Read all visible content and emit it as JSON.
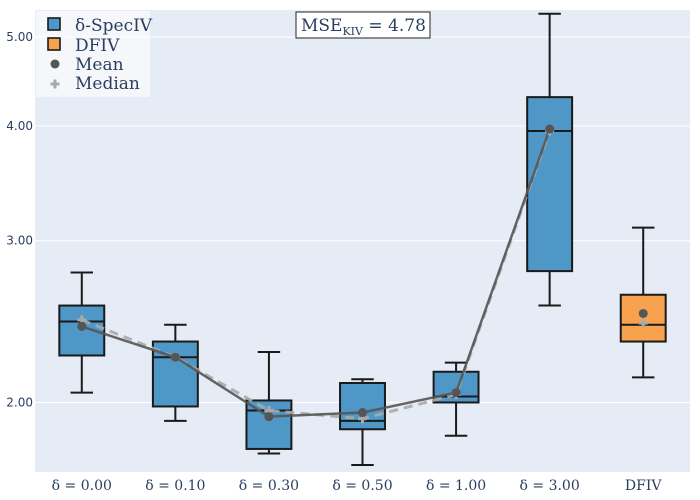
{
  "chart_data": {
    "type": "box",
    "y_scale": "log",
    "ylim": [
      1.68,
      5.35
    ],
    "y_ticks": [
      2.0,
      3.0,
      4.0,
      5.0
    ],
    "y_tick_labels": [
      "2.00",
      "3.00",
      "4.00",
      "5.00"
    ],
    "categories": [
      "δ = 0.00",
      "δ = 0.10",
      "δ = 0.30",
      "δ = 0.50",
      "δ = 1.00",
      "δ = 3.00",
      "DFIV"
    ],
    "series": [
      {
        "name": "δ-SpecIV",
        "color": "#4f97c7",
        "boxes": [
          {
            "category": "δ = 0.00",
            "min": 2.05,
            "q1": 2.25,
            "median": 2.45,
            "q3": 2.55,
            "max": 2.77,
            "mean": 2.42,
            "median_marker": 2.46
          },
          {
            "category": "δ = 0.10",
            "min": 1.91,
            "q1": 1.98,
            "median": 2.24,
            "q3": 2.33,
            "max": 2.43,
            "mean": 2.24,
            "median_marker": 2.24
          },
          {
            "category": "δ = 0.30",
            "min": 1.76,
            "q1": 1.78,
            "median": 1.96,
            "q3": 2.01,
            "max": 2.27,
            "mean": 1.93,
            "median_marker": 1.96
          },
          {
            "category": "δ = 0.50",
            "min": 1.71,
            "q1": 1.87,
            "median": 1.91,
            "q3": 2.1,
            "max": 2.12,
            "mean": 1.95,
            "median_marker": 1.92
          },
          {
            "category": "δ = 1.00",
            "min": 1.84,
            "q1": 2.0,
            "median": 2.03,
            "q3": 2.16,
            "max": 2.21,
            "mean": 2.05,
            "median_marker": 2.04
          },
          {
            "category": "δ = 3.00",
            "min": 2.55,
            "q1": 2.78,
            "median": 3.95,
            "q3": 4.3,
            "max": 5.3,
            "mean": 3.97,
            "median_marker": 3.95
          }
        ]
      },
      {
        "name": "DFIV",
        "color": "#f7a24f",
        "boxes": [
          {
            "category": "DFIV",
            "min": 2.13,
            "q1": 2.33,
            "median": 2.43,
            "q3": 2.62,
            "max": 3.1,
            "mean": 2.5,
            "median_marker": 2.44
          }
        ]
      }
    ],
    "mean_line": {
      "name": "Mean",
      "values": [
        2.42,
        2.24,
        1.93,
        1.95,
        2.05,
        3.97
      ]
    },
    "median_line": {
      "name": "Median",
      "values": [
        2.46,
        2.24,
        1.96,
        1.92,
        2.04,
        3.95
      ]
    },
    "legend": [
      {
        "label": "δ-SpecIV",
        "marker": "square",
        "color": "#4f97c7"
      },
      {
        "label": "DFIV",
        "marker": "square",
        "color": "#f7a24f"
      },
      {
        "label": "Mean",
        "marker": "circle",
        "color": "#555555"
      },
      {
        "label": "Median",
        "marker": "plus",
        "color": "#a8a8a8"
      }
    ],
    "legend_position": "top-left",
    "annotation": {
      "prefix": "MSE",
      "subscript": "KIV",
      "suffix": " = 4.78"
    },
    "colors": {
      "plot_bg": "#e5ecf6",
      "grid": "#ffffff",
      "text": "#2a3f5f",
      "mean_line": "#555555",
      "median_line": "#aaaaaa"
    }
  }
}
